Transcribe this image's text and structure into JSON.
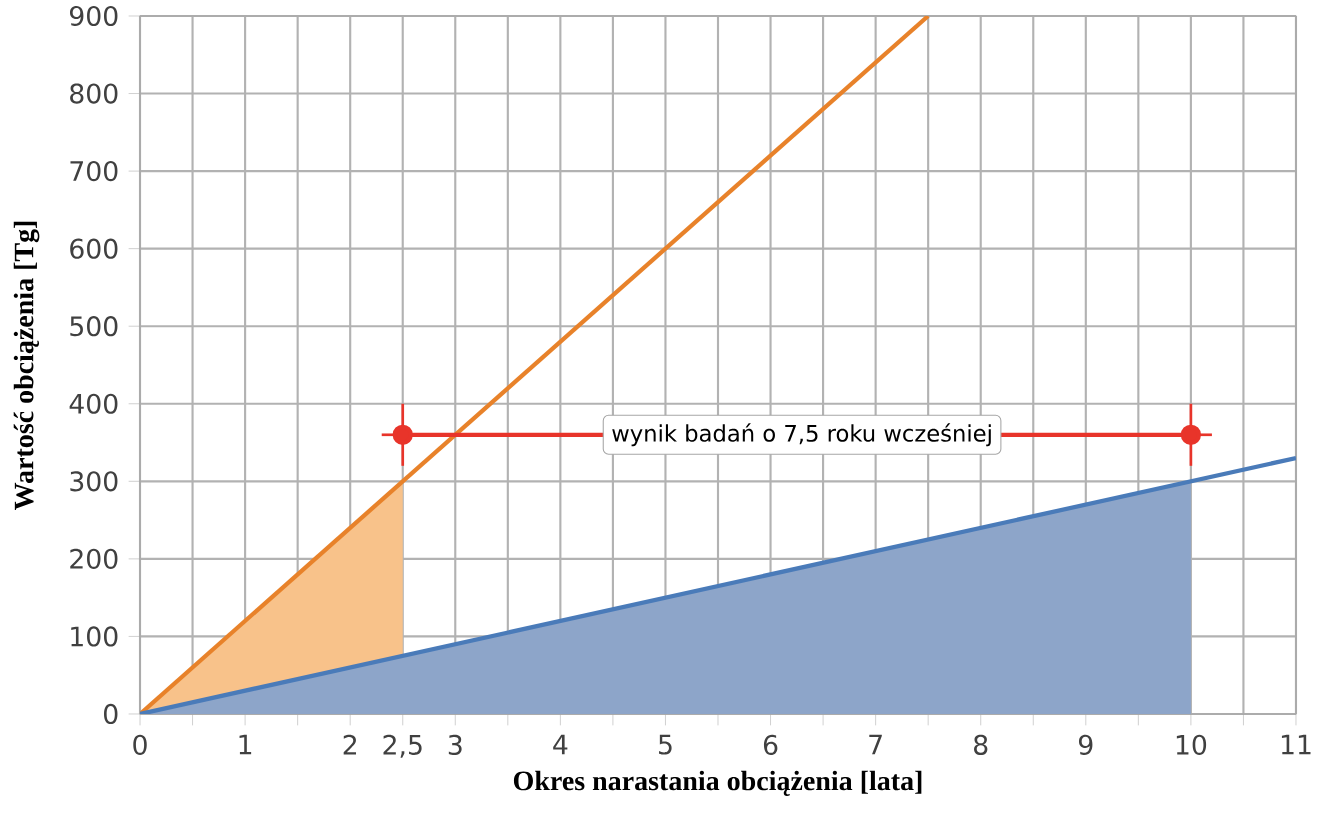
{
  "chart_data": {
    "type": "line",
    "xlabel": "Okres narastania obciążenia [lata]",
    "ylabel": "Wartość obciążenia  [Tg]",
    "xlim": [
      0,
      11
    ],
    "ylim": [
      0,
      900
    ],
    "xticks": [
      0,
      {
        "value": 0.5,
        "label": null
      },
      1,
      {
        "value": 1.5,
        "label": null
      },
      2,
      {
        "value": 2.5,
        "label": "2,5"
      },
      3,
      {
        "value": 3.5,
        "label": null
      },
      4,
      {
        "value": 4.5,
        "label": null
      },
      5,
      {
        "value": 5.5,
        "label": null
      },
      6,
      {
        "value": 6.5,
        "label": null
      },
      7,
      {
        "value": 7.5,
        "label": null
      },
      8,
      {
        "value": 8.5,
        "label": null
      },
      9,
      {
        "value": 9.5,
        "label": null
      },
      10,
      {
        "value": 10.5,
        "label": null
      },
      11
    ],
    "yticks": [
      0,
      100,
      200,
      300,
      400,
      500,
      600,
      700,
      800,
      900
    ],
    "grid": true,
    "series": [
      {
        "type": "area",
        "color": "#f8c28a",
        "x": [
          0,
          2.5
        ],
        "values": [
          0,
          300
        ]
      },
      {
        "type": "area",
        "color": "#8da5c9",
        "x": [
          0,
          10
        ],
        "values": [
          0,
          300
        ]
      },
      {
        "color": "#e8822a",
        "x": [
          0,
          7.5
        ],
        "values": [
          0,
          900
        ]
      },
      {
        "color": "#4a7bb9",
        "x": [
          0,
          11
        ],
        "values": [
          0,
          330
        ]
      },
      {
        "type": "line",
        "color": "#e8342a",
        "marker": "circle",
        "x": [
          2.5,
          10
        ],
        "values": [
          360,
          360
        ],
        "errors": [
          40,
          40
        ],
        "xerrors": [
          0.2,
          0.2
        ]
      }
    ],
    "annotations": [
      {
        "text": "wynik badań o 7,5 roku wcześniej",
        "x": 6.3,
        "y": 360
      }
    ]
  }
}
